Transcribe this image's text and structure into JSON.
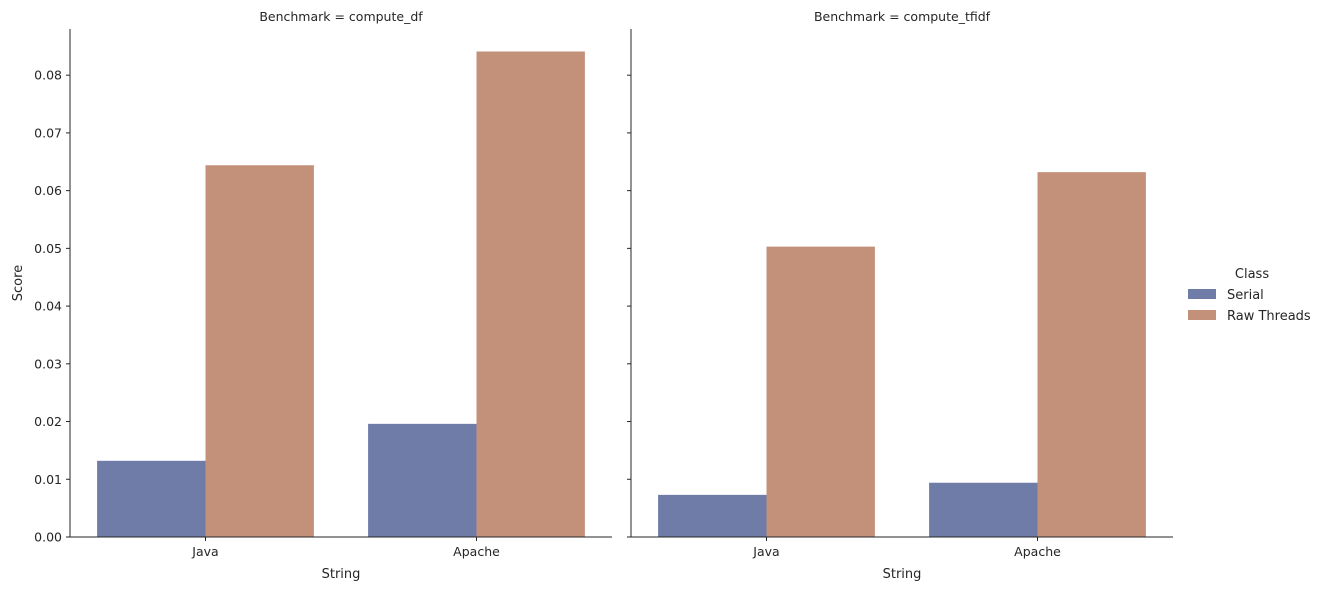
{
  "chart_data": {
    "type": "bar",
    "ylabel": "Score",
    "xlabel": "String",
    "ylim": [
      0,
      0.088
    ],
    "yticks": [
      "0.00",
      "0.01",
      "0.02",
      "0.03",
      "0.04",
      "0.05",
      "0.06",
      "0.07",
      "0.08"
    ],
    "yticks_values": [
      0,
      0.01,
      0.02,
      0.03,
      0.04,
      0.05,
      0.06,
      0.07,
      0.08
    ],
    "categories": [
      "Java",
      "Apache"
    ],
    "legend": {
      "title": "Class",
      "placement": "right",
      "entries": [
        "Serial",
        "Raw Threads"
      ]
    },
    "series_colors": [
      "#6f7ca8",
      "#c3917a"
    ],
    "facets": [
      {
        "title": "Benchmark = compute_df",
        "series": [
          {
            "name": "Serial",
            "values": [
              0.0132,
              0.0196
            ]
          },
          {
            "name": "Raw Threads",
            "values": [
              0.0644,
              0.0841
            ]
          }
        ]
      },
      {
        "title": "Benchmark = compute_tfidf",
        "series": [
          {
            "name": "Serial",
            "values": [
              0.0073,
              0.0094
            ]
          },
          {
            "name": "Raw Threads",
            "values": [
              0.0503,
              0.0632
            ]
          }
        ]
      }
    ]
  }
}
